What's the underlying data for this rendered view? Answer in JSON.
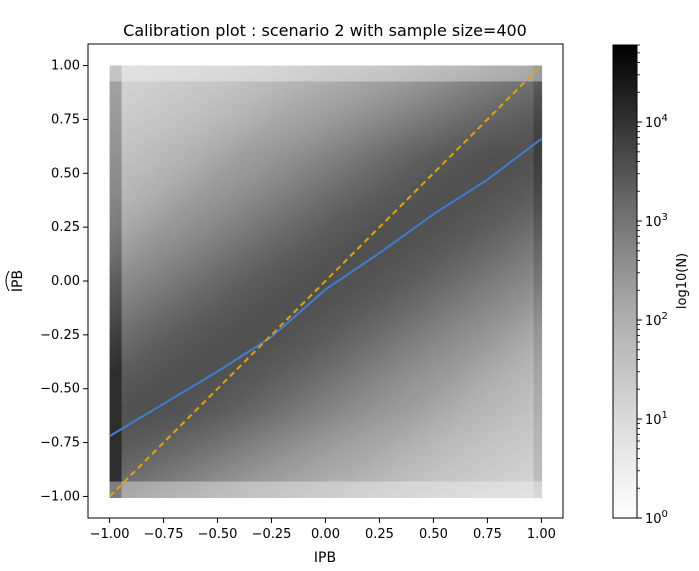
{
  "chart_data": {
    "type": "heatmap",
    "subtype": "hexbin",
    "title": "Calibration plot : scenario 2 with sample size=400",
    "xlabel": "IPB",
    "ylabel": "IPB",
    "ylabel_accent": "hat",
    "xlim": [
      -1.1,
      1.1
    ],
    "ylim": [
      -1.1,
      1.1
    ],
    "xticks": [
      -1.0,
      -0.75,
      -0.5,
      -0.25,
      0.0,
      0.25,
      0.5,
      0.75,
      1.0
    ],
    "xtick_labels": [
      "−1.00",
      "−0.75",
      "−0.50",
      "−0.25",
      "0.00",
      "0.25",
      "0.50",
      "0.75",
      "1.00"
    ],
    "yticks": [
      -1.0,
      -0.75,
      -0.5,
      -0.25,
      0.0,
      0.25,
      0.5,
      0.75,
      1.0
    ],
    "ytick_labels": [
      "−1.00",
      "−0.75",
      "−0.50",
      "−0.25",
      "0.00",
      "0.25",
      "0.50",
      "0.75",
      "1.00"
    ],
    "grid": false,
    "colormap": "Greys",
    "series": [
      {
        "kind": "line",
        "color": "#3d7fd1",
        "style": "solid",
        "x": [
          -1.0,
          -0.75,
          -0.5,
          -0.25,
          0.0,
          0.25,
          0.5,
          0.75,
          1.0
        ],
        "y": [
          -0.72,
          -0.57,
          -0.42,
          -0.26,
          -0.04,
          0.13,
          0.31,
          0.47,
          0.66
        ]
      },
      {
        "kind": "line",
        "color": "#e6a100",
        "style": "dashed",
        "x": [
          -1.0,
          1.0
        ],
        "y": [
          -1.0,
          1.0
        ]
      }
    ],
    "colorbar": {
      "label": "log10(N)",
      "scale": "log",
      "range": [
        1,
        60000
      ],
      "ticks": [
        {
          "value": 1,
          "base": "10",
          "exp": "0"
        },
        {
          "value": 10,
          "base": "10",
          "exp": "1"
        },
        {
          "value": 100,
          "base": "10",
          "exp": "2"
        },
        {
          "value": 1000,
          "base": "10",
          "exp": "3"
        },
        {
          "value": 10000,
          "base": "10",
          "exp": "4"
        }
      ]
    }
  }
}
